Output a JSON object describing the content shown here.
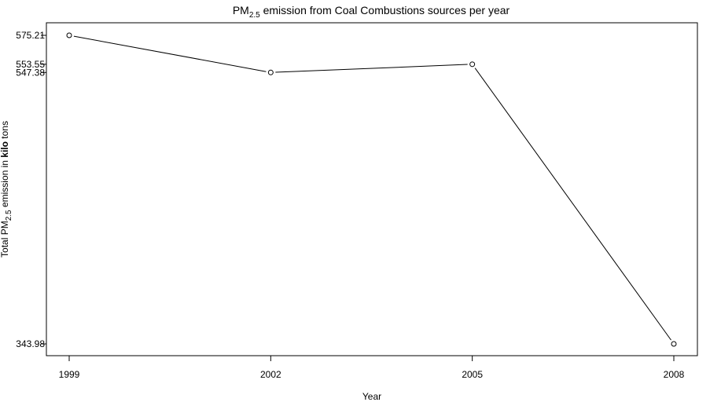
{
  "chart_data": {
    "type": "line",
    "title": {
      "prefix": "PM",
      "subscript": "2.5",
      "suffix": " emission from Coal Combustions sources per year"
    },
    "xlabel": "Year",
    "ylabel": {
      "prefix": "Total PM",
      "subscript": "2.5",
      "middle": " emission in ",
      "bold": "kilo",
      "suffix": " tons"
    },
    "x": [
      1999,
      2002,
      2005,
      2008
    ],
    "x_tick_labels": [
      "1999",
      "2002",
      "2005",
      "2008"
    ],
    "series": [
      {
        "values": [
          575.21,
          547.38,
          553.55,
          343.98
        ]
      }
    ],
    "y_tick_labels": [
      "575.21",
      "553.55",
      "547.38",
      "343.98"
    ],
    "y_ticks": [
      575.21,
      553.55,
      547.38,
      343.98
    ],
    "xlim": [
      1999,
      2008
    ],
    "ylim": [
      343.98,
      575.21
    ],
    "grid": false,
    "marker": "open-circle",
    "line_color": "#000000"
  }
}
